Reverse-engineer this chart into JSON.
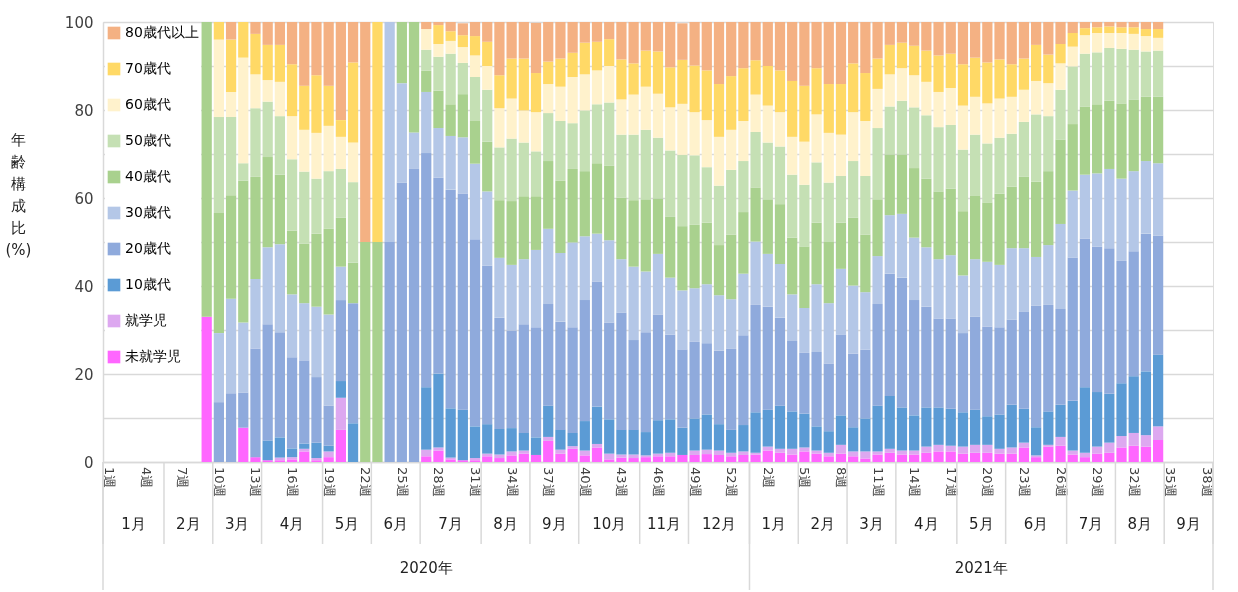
{
  "chart_data": {
    "type": "bar",
    "stacked": true,
    "ylabel": "年齢構成比\n(%)",
    "categories": [
      "1週",
      null,
      null,
      "4週",
      null,
      null,
      "7週",
      null,
      null,
      "10週",
      null,
      null,
      "13週",
      null,
      null,
      "16週",
      null,
      null,
      "19週",
      null,
      null,
      "22週",
      null,
      null,
      "25週",
      null,
      null,
      "28週",
      null,
      null,
      "31週",
      null,
      null,
      "34週",
      null,
      null,
      "37週",
      null,
      null,
      "40週",
      null,
      null,
      "43週",
      null,
      null,
      "46週",
      null,
      null,
      "49週",
      null,
      null,
      "52週",
      null,
      null,
      "2週",
      null,
      null,
      "5週",
      null,
      null,
      "8週",
      null,
      null,
      "11週",
      null,
      null,
      "14週",
      null,
      null,
      "17週",
      null,
      null,
      "20週",
      null,
      null,
      "23週",
      null,
      null,
      "26週",
      null,
      null,
      "29週",
      null,
      null,
      "32週",
      null,
      null,
      "35週",
      null,
      null,
      "38週"
    ],
    "series": [
      {
        "name": "未就学児",
        "color": "#ff66ff",
        "values": [
          null,
          null,
          null,
          null,
          null,
          null,
          null,
          null,
          33,
          0,
          0,
          7.8,
          1.1,
          0.4,
          0.4,
          0.6,
          2.4,
          0.4,
          1.1,
          7.3,
          0,
          0,
          0,
          0,
          0,
          0,
          1.3,
          2.6,
          0.6,
          0.4,
          0.4,
          1.3,
          0.9,
          1.5,
          1.9,
          1.6,
          4.8,
          1.9,
          3.0,
          1.5,
          3.3,
          0.6,
          1.0,
          0.9,
          1.1,
          1.3,
          1.3,
          1.6,
          1.6,
          1.8,
          1.6,
          1.3,
          1.6,
          1.7,
          2.6,
          2.1,
          1.7,
          2.4,
          1.9,
          1.3,
          1.9,
          1.3,
          0.8,
          1.7,
          2.1,
          1.7,
          1.7,
          2.1,
          2.4,
          2.4,
          1.9,
          2.1,
          2.1,
          1.9,
          1.9,
          3.3,
          1.1,
          3.5,
          3.7,
          1.7,
          1.1,
          1.9,
          2.1,
          3.3,
          3.7,
          3.5,
          5.0,
          null,
          null,
          null,
          null
        ]
      },
      {
        "name": "就学児",
        "color": "#dda8f0",
        "values": [
          null,
          null,
          null,
          null,
          null,
          null,
          null,
          null,
          0,
          0,
          0,
          0,
          0,
          0,
          0.6,
          0.5,
          0.6,
          0.5,
          1.3,
          7.3,
          0,
          0,
          0,
          0,
          0,
          0,
          1.5,
          0.7,
          0.4,
          null,
          0.5,
          0.6,
          0.8,
          0.9,
          0.7,
          null,
          0.9,
          0.9,
          0.6,
          1.1,
          0.8,
          1.3,
          0.7,
          0.8,
          0.4,
          0.6,
          0.8,
          null,
          1.0,
          1.0,
          1.0,
          0.8,
          0.8,
          0.4,
          0.9,
          0.9,
          1.3,
          0.9,
          0.7,
          0.8,
          2.0,
          1.1,
          1.6,
          0.7,
          0.9,
          0.9,
          0.9,
          1.4,
          1.5,
          1.3,
          1.6,
          1.8,
          1.8,
          1.1,
          1.4,
          1.1,
          0.4,
          0.4,
          2.0,
          0.9,
          1.0,
          1.6,
          2.3,
          2.6,
          2.9,
          2.6,
          3.1,
          null,
          null,
          null,
          null
        ]
      },
      {
        "name": "10歳代",
        "color": "#5b9bd5",
        "values": [
          null,
          null,
          null,
          null,
          null,
          null,
          null,
          null,
          0,
          0,
          0,
          0,
          0,
          4.5,
          4.6,
          2.0,
          1.2,
          3.5,
          1.3,
          3.8,
          8.8,
          0,
          0,
          0,
          0,
          0,
          14.2,
          16.8,
          11.2,
          11.5,
          7.2,
          6.7,
          5.8,
          5.3,
          4.0,
          4.0,
          7.1,
          4.5,
          3.0,
          6.7,
          8.5,
          7.8,
          5.6,
          5.6,
          5.3,
          7.6,
          7.6,
          6.2,
          7.3,
          8.0,
          6.0,
          5.2,
          6.0,
          9.2,
          8.4,
          9.8,
          8.5,
          7.7,
          5.5,
          4.9,
          6.7,
          5.5,
          7.5,
          10.4,
          12.0,
          9.8,
          8.0,
          8.9,
          8.5,
          8.4,
          7.8,
          8.0,
          6.5,
          7.8,
          9.7,
          7.7,
          6.4,
          7.6,
          7.3,
          11.3,
          14.9,
          12.4,
          11.1,
          12.0,
          12.9,
          14.5,
          16.3,
          null,
          null,
          null,
          null
        ]
      },
      {
        "name": "20歳代",
        "color": "#8faadc",
        "values": [
          null,
          null,
          null,
          null,
          null,
          null,
          null,
          null,
          0,
          13.6,
          15.6,
          8.0,
          24.7,
          26.4,
          23.9,
          20.7,
          18.9,
          14.9,
          9.1,
          18.4,
          27.3,
          0,
          0,
          50,
          63.5,
          66.6,
          53.2,
          44.5,
          49.7,
          49.1,
          42.5,
          36.0,
          25.3,
          22.2,
          24.7,
          25.0,
          23.1,
          24.6,
          24.0,
          27.5,
          28.4,
          22.0,
          26.6,
          20.4,
          22.7,
          24.0,
          19.3,
          17.8,
          17.4,
          16.2,
          16.7,
          18.4,
          20.4,
          24.4,
          23.4,
          20.0,
          16.0,
          13.8,
          16.9,
          15.4,
          18.4,
          16.7,
          15.6,
          23.1,
          27.8,
          29.5,
          26.2,
          22.9,
          20.2,
          20.5,
          18.0,
          21.1,
          20.4,
          19.8,
          19.4,
          22.0,
          27.6,
          24.2,
          21.8,
          32.5,
          33.8,
          33.1,
          33.1,
          27.8,
          28.4,
          31.3,
          27.1,
          null,
          null,
          null,
          null
        ]
      },
      {
        "name": "30歳代",
        "color": "#b4c7e7",
        "values": [
          null,
          null,
          null,
          null,
          null,
          null,
          null,
          null,
          0,
          15.7,
          21.5,
          15.9,
          15.8,
          17.5,
          20.0,
          14.3,
          13.0,
          16.0,
          20.7,
          7.6,
          0,
          0,
          0,
          50,
          22.6,
          8.3,
          13.9,
          11.3,
          12.2,
          12.8,
          17.2,
          16.9,
          13.6,
          14.9,
          14.8,
          17.6,
          17.1,
          15.6,
          19.3,
          14.5,
          10.9,
          18.7,
          12.2,
          16.7,
          13.8,
          13.8,
          12.9,
          13.4,
          12.2,
          13.4,
          12.6,
          11.3,
          14.0,
          14.4,
          12.0,
          12.2,
          10.6,
          10.2,
          15.4,
          13.7,
          14.9,
          15.5,
          13.1,
          10.9,
          13.3,
          14.5,
          14.2,
          13.5,
          13.5,
          14.4,
          13.1,
          13.1,
          14.7,
          14.2,
          16.2,
          14.5,
          11.1,
          13.6,
          19.3,
          15.3,
          14.5,
          16.6,
          18.0,
          18.7,
          18.2,
          16.5,
          16.4,
          null,
          null,
          null,
          null
        ]
      },
      {
        "name": "40歳代",
        "color": "#a9d18e",
        "values": [
          null,
          null,
          null,
          null,
          null,
          null,
          null,
          null,
          67,
          27.3,
          23.5,
          32.3,
          23.2,
          20.5,
          15.8,
          14.5,
          13.5,
          16.6,
          19.5,
          11.1,
          9.2,
          50,
          50,
          0,
          13.9,
          25.1,
          4.8,
          8.5,
          7.2,
          9.8,
          9.7,
          11.3,
          13.1,
          14.5,
          14.3,
          12.2,
          15.4,
          16.4,
          16.7,
          14.8,
          16.0,
          16.9,
          14.0,
          15.1,
          16.4,
          12.6,
          13.8,
          14.6,
          14.4,
          14.0,
          11.4,
          14.7,
          14.0,
          12.3,
          12.4,
          13.6,
          12.9,
          14.0,
          14.0,
          13.9,
          10.5,
          15.4,
          13.1,
          12.9,
          13.8,
          13.5,
          15.8,
          15.6,
          15.4,
          15.1,
          14.6,
          14.5,
          13.5,
          16.2,
          14.0,
          16.2,
          17.1,
          16.8,
          19.2,
          15.1,
          15.5,
          15.7,
          15.5,
          17.1,
          16.3,
          14.6,
          15.1,
          null,
          null,
          null,
          null
        ]
      },
      {
        "name": "50歳代",
        "color": "#c5e0b4",
        "values": [
          null,
          null,
          null,
          null,
          null,
          null,
          null,
          null,
          0,
          21.8,
          17.8,
          3.9,
          15.6,
          12.6,
          13.3,
          16.2,
          16.4,
          12.5,
          13.1,
          11.1,
          18.3,
          0,
          0,
          0,
          0,
          0,
          4.8,
          7.7,
          11.5,
          7.1,
          10.0,
          11.8,
          12.0,
          14.2,
          12.2,
          10.2,
          10.9,
          13.6,
          10.4,
          13.8,
          13.4,
          14.4,
          14.3,
          14.9,
          15.8,
          13.8,
          15.1,
          16.2,
          15.8,
          12.6,
          13.5,
          14.7,
          11.6,
          12.6,
          12.9,
          13.1,
          14.3,
          14.0,
          13.7,
          13.5,
          10.6,
          12.9,
          13.3,
          16.2,
          10.9,
          12.2,
          13.8,
          14.4,
          14.6,
          14.5,
          14.0,
          13.8,
          13.4,
          12.7,
          12.0,
          12.5,
          15.3,
          12.5,
          11.3,
          13.1,
          12.0,
          11.8,
          12.0,
          12.4,
          11.3,
          10.3,
          10.5,
          null,
          null,
          null,
          null
        ]
      },
      {
        "name": "60歳代",
        "color": "#fff2cc",
        "values": [
          null,
          null,
          null,
          null,
          null,
          null,
          null,
          null,
          0,
          17.6,
          5.7,
          24.0,
          7.7,
          4.9,
          7.8,
          9.8,
          9.5,
          10.4,
          10.3,
          7.3,
          9.0,
          0,
          0,
          0,
          0,
          0,
          4.7,
          2.9,
          2.9,
          3.6,
          4.9,
          5.4,
          8.9,
          9.1,
          7.3,
          8.9,
          6.6,
          7.8,
          10.5,
          8.2,
          7.7,
          8.3,
          8.0,
          9.1,
          9.8,
          10.0,
          9.8,
          11.6,
          9.8,
          10.7,
          11.1,
          9.1,
          9.1,
          8.5,
          8.4,
          7.8,
          8.6,
          9.8,
          10.9,
          11.3,
          9.4,
          11.1,
          12.5,
          8.9,
          7.3,
          7.4,
          7.3,
          7.6,
          8.0,
          8.4,
          10.0,
          8.6,
          9.1,
          8.9,
          8.4,
          7.3,
          7.6,
          7.5,
          6.0,
          4.5,
          4.2,
          4.4,
          3.4,
          3.6,
          3.6,
          3.5,
          2.9,
          null,
          null,
          null,
          null
        ]
      },
      {
        "name": "70歳代",
        "color": "#ffd966",
        "values": [
          null,
          null,
          null,
          null,
          null,
          null,
          null,
          null,
          0,
          4.0,
          11.9,
          8.1,
          9.2,
          8.0,
          8.4,
          11.8,
          10.0,
          13.1,
          9.1,
          3.8,
          18.2,
          0,
          50,
          0,
          0,
          0,
          0,
          4.3,
          2.2,
          2.7,
          4.4,
          5.5,
          7.5,
          9.1,
          11.8,
          8.9,
          5.1,
          6.4,
          5.5,
          7.2,
          6.5,
          6.1,
          9.1,
          7.1,
          8.2,
          9.6,
          9.1,
          10.0,
          10.6,
          11.3,
          12.0,
          12.2,
          12.0,
          7.8,
          9.0,
          9.5,
          12.7,
          12.7,
          10.5,
          11.1,
          11.5,
          11.1,
          10.9,
          6.9,
          6.7,
          5.8,
          6.7,
          7.1,
          8.3,
          7.8,
          9.4,
          8.9,
          9.3,
          8.9,
          7.4,
          7.1,
          8.2,
          6.5,
          4.4,
          3.1,
          1.6,
          1.3,
          1.5,
          1.3,
          1.5,
          1.6,
          2.0,
          null,
          null,
          null,
          null
        ]
      },
      {
        "name": "80歳代以上",
        "color": "#f4b183",
        "values": [
          null,
          null,
          null,
          null,
          null,
          null,
          null,
          null,
          0,
          0,
          4.0,
          0,
          2.7,
          5.2,
          5.2,
          9.6,
          14.5,
          12.1,
          14.5,
          22.3,
          9.2,
          50,
          0,
          0,
          0,
          0,
          1.6,
          0.7,
          2.1,
          2.7,
          3.2,
          4.5,
          12.1,
          8.3,
          8.3,
          11.4,
          9.0,
          8.3,
          7.0,
          4.7,
          4.5,
          3.9,
          8.5,
          9.4,
          6.5,
          6.7,
          10.3,
          8.3,
          9.9,
          11.0,
          14.1,
          12.3,
          10.5,
          8.7,
          10.0,
          11.0,
          13.4,
          14.5,
          10.5,
          14.1,
          14.1,
          9.4,
          11.6,
          8.3,
          5.2,
          4.7,
          5.4,
          6.5,
          7.6,
          7.2,
          9.6,
          8.1,
          9.2,
          8.5,
          9.6,
          8.3,
          5.2,
          7.4,
          5.0,
          2.5,
          1.4,
          1.2,
          1.0,
          1.2,
          1.2,
          1.6,
          1.6,
          null,
          null,
          null,
          null
        ]
      }
    ],
    "ylim": [
      0,
      100
    ],
    "yticks": [
      0,
      {
        "value": 10,
        "label": null
      },
      20,
      {
        "value": 30,
        "label": null
      },
      40,
      {
        "value": 50,
        "label": null
      },
      60,
      {
        "value": 70,
        "label": null
      },
      80,
      {
        "value": 90,
        "label": null
      },
      100
    ],
    "grid": "y",
    "legend": "top left",
    "annotations": [
      "1月",
      "2月",
      "3月",
      "4月",
      "5月",
      "6月",
      "7月",
      "8月",
      "9月",
      "10月",
      "11月",
      "12月",
      "1月",
      "2月",
      "3月",
      "4月",
      "5月",
      "6月",
      "7月",
      "8月",
      "9月",
      "2020年",
      "2021年"
    ]
  }
}
